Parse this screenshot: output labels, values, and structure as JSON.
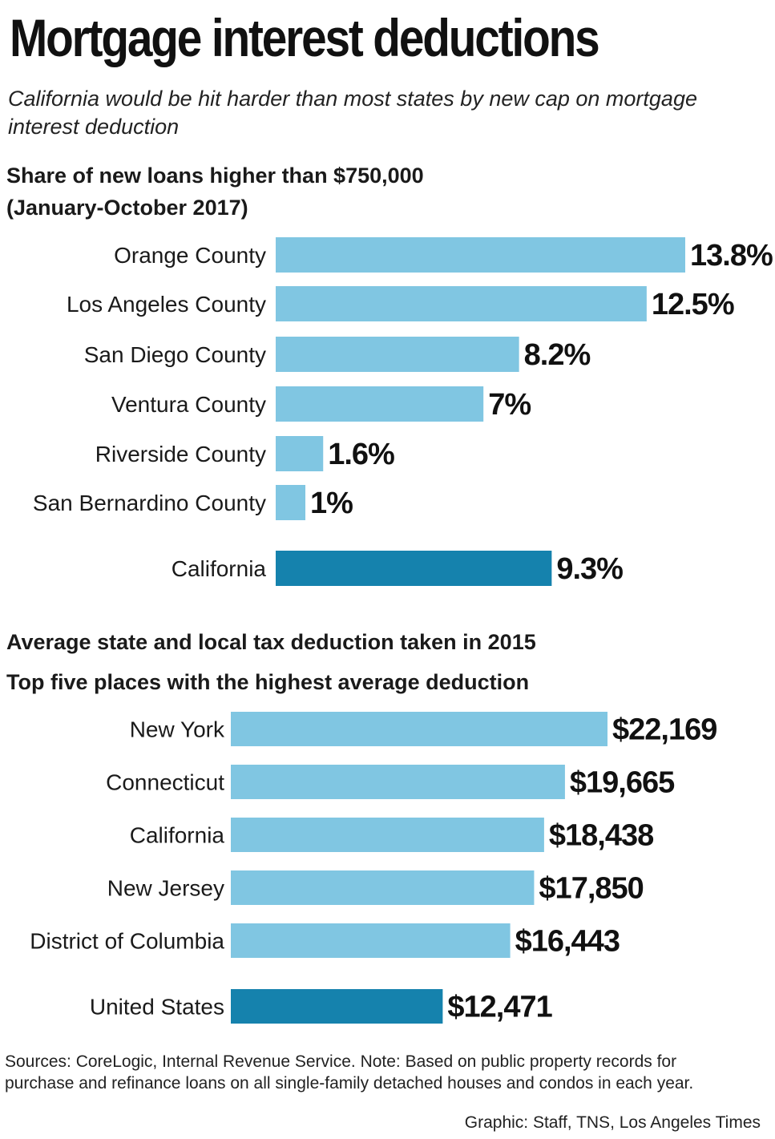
{
  "header": {
    "title": "Mortgage interest deductions",
    "subtitle": "California would be hit harder than most states by new cap on mortgage interest deduction"
  },
  "colors": {
    "bar": "#80c6e2",
    "highlight": "#1582ad"
  },
  "chart_data": [
    {
      "type": "bar",
      "orientation": "horizontal",
      "title": "Share of new loans higher than $750,000",
      "subtitle": "(January-October 2017)",
      "categories": [
        "Orange County",
        "Los Angeles County",
        "San Diego County",
        "Ventura County",
        "Riverside County",
        "San Bernardino County",
        "California"
      ],
      "values": [
        13.8,
        12.5,
        8.2,
        7,
        1.6,
        1,
        9.3
      ],
      "value_labels": [
        "13.8%",
        "12.5%",
        "8.2%",
        "7%",
        "1.6%",
        "1%",
        "9.3%"
      ],
      "highlight": [
        false,
        false,
        false,
        false,
        false,
        false,
        true
      ],
      "xlabel": "",
      "ylabel": "",
      "xlim": [
        0,
        13.8
      ],
      "grid": false
    },
    {
      "type": "bar",
      "orientation": "horizontal",
      "title": "Average state and local tax deduction taken in 2015",
      "subtitle": "Top five places with the highest average deduction",
      "categories": [
        "New York",
        "Connecticut",
        "California",
        "New Jersey",
        "District of Columbia",
        "United States"
      ],
      "values": [
        22169,
        19665,
        18438,
        17850,
        16443,
        12471
      ],
      "value_labels": [
        "$22,169",
        "$19,665",
        "$18,438",
        "$17,850",
        "$16,443",
        "$12,471"
      ],
      "highlight": [
        false,
        false,
        false,
        false,
        false,
        true
      ],
      "xlabel": "",
      "ylabel": "",
      "xlim": [
        0,
        22169
      ],
      "grid": false
    }
  ],
  "footer": {
    "sources": "Sources: CoreLogic, Internal Revenue Service. Note: Based on public property records for purchase and refinance loans on all single-family detached houses and condos in each year.",
    "credit": "Graphic: Staff, TNS, Los Angeles Times"
  }
}
